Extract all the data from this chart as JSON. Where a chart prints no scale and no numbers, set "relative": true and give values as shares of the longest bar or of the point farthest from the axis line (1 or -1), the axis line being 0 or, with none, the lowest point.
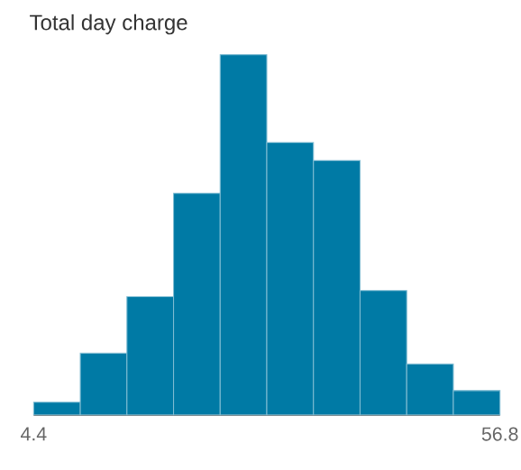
{
  "chart_data": {
    "type": "bar",
    "title": "Total day charge",
    "relative": true,
    "color": "#007aa5",
    "categories": [
      null,
      null,
      null,
      null,
      null,
      null,
      null,
      null,
      null,
      null
    ],
    "values": [
      0.035,
      0.171,
      0.328,
      0.615,
      1,
      0.756,
      0.706,
      0.345,
      0.141,
      0.067
    ],
    "annotations": [
      "4.4",
      "56.8"
    ]
  }
}
